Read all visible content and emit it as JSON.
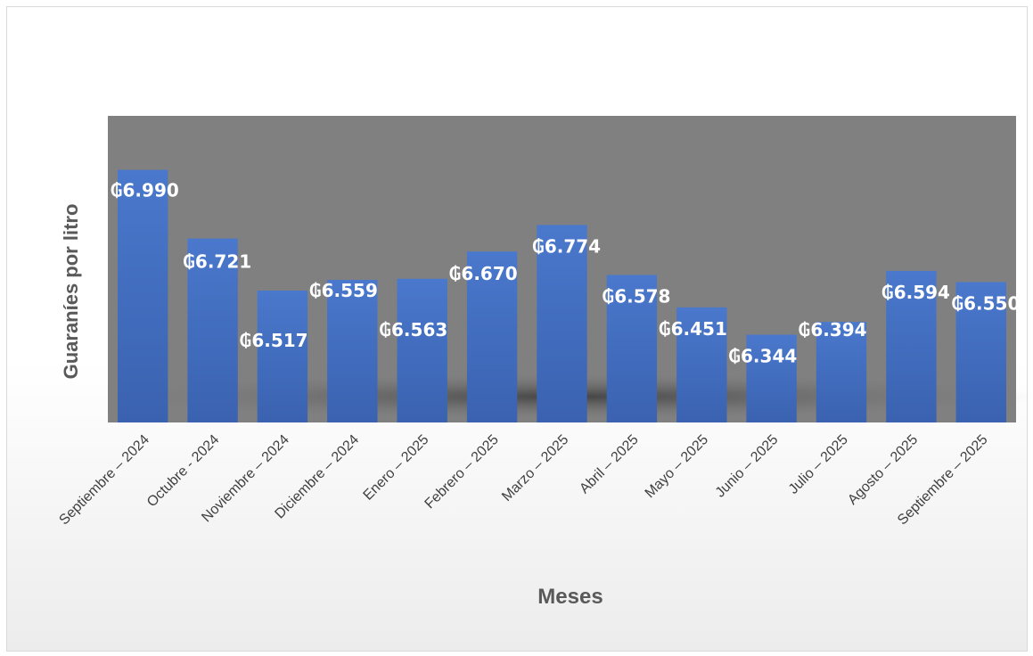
{
  "chart_data": {
    "type": "bar",
    "categories": [
      "Septiembre – 2024",
      "Octubre - 2024",
      "Noviembre – 2024",
      "Diciembre – 2024",
      "Enero – 2025",
      "Febrero – 2025",
      "Marzo – 2025",
      "Abril – 2025",
      "Mayo – 2025",
      "Junio – 2025",
      "Julio – 2025",
      "Agosto – 2025",
      "Septiembre – 2025"
    ],
    "values": [
      6990,
      6721,
      6517,
      6559,
      6563,
      6670,
      6774,
      6578,
      6451,
      6344,
      6394,
      6594,
      6550
    ],
    "data_labels": [
      "₲6.990",
      "₲6.721",
      "₲6.517",
      "₲6.559",
      "₲6.563",
      "₲6.670",
      "₲6.774",
      "₲6.578",
      "₲6.451",
      "₲6.344",
      "₲6.394",
      "₲6.594",
      "₲6.550"
    ],
    "xlabel": "Meses",
    "ylabel": "Guaraníes por litro",
    "ylim": [
      6000,
      7200
    ],
    "grid": false,
    "legend": "none",
    "bar_color": "#4472C4",
    "plot_background": "#808080"
  }
}
